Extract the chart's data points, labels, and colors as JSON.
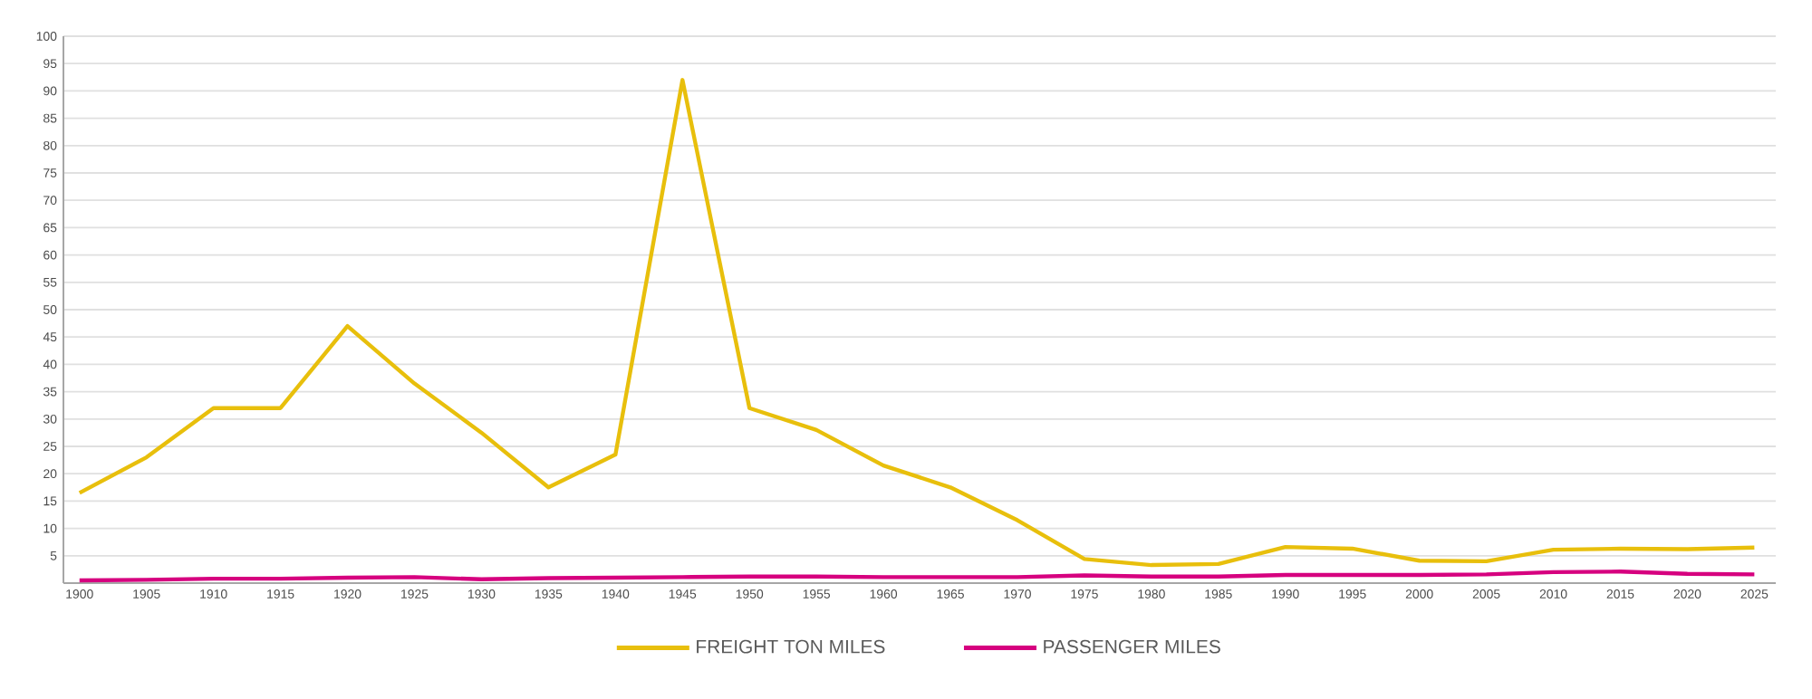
{
  "chart_data": {
    "type": "line",
    "x": [
      1900,
      1905,
      1910,
      1915,
      1920,
      1925,
      1930,
      1935,
      1940,
      1945,
      1950,
      1955,
      1960,
      1965,
      1970,
      1975,
      1980,
      1985,
      1990,
      1995,
      2000,
      2005,
      2010,
      2015,
      2020,
      2025
    ],
    "series": [
      {
        "name": "FREIGHT TON MILES",
        "color": "#e8bf0c",
        "values": [
          16.5,
          23,
          32,
          32,
          47,
          36.5,
          27.5,
          17.5,
          23.5,
          92,
          32,
          28,
          21.5,
          17.5,
          11.5,
          4.4,
          3.3,
          3.5,
          6.6,
          6.3,
          4.1,
          4,
          6.1,
          6.3,
          6.2,
          6.5
        ]
      },
      {
        "name": "PASSENGER MILES",
        "color": "#d6007f",
        "values": [
          0.5,
          0.6,
          0.8,
          0.8,
          1,
          1.1,
          0.7,
          0.9,
          1,
          1.1,
          1.2,
          1.2,
          1.1,
          1.1,
          1.1,
          1.4,
          1.2,
          1.2,
          1.5,
          1.5,
          1.5,
          1.6,
          2,
          2.1,
          1.7,
          1.6
        ]
      }
    ],
    "xlim": [
      1898.8,
      2026.6
    ],
    "xticks": [
      1900,
      1905,
      1910,
      1915,
      1920,
      1925,
      1930,
      1935,
      1940,
      1945,
      1950,
      1955,
      1960,
      1965,
      1970,
      1975,
      1980,
      1985,
      1990,
      1995,
      2000,
      2005,
      2010,
      2015,
      2020,
      2025
    ],
    "ylim": [
      0,
      100
    ],
    "yticks": [
      5,
      10,
      15,
      20,
      25,
      30,
      35,
      40,
      45,
      50,
      55,
      60,
      65,
      70,
      75,
      80,
      85,
      90,
      95,
      100
    ],
    "grid": "y",
    "legend": "bottom",
    "marker": "none",
    "line_style": "solid"
  }
}
